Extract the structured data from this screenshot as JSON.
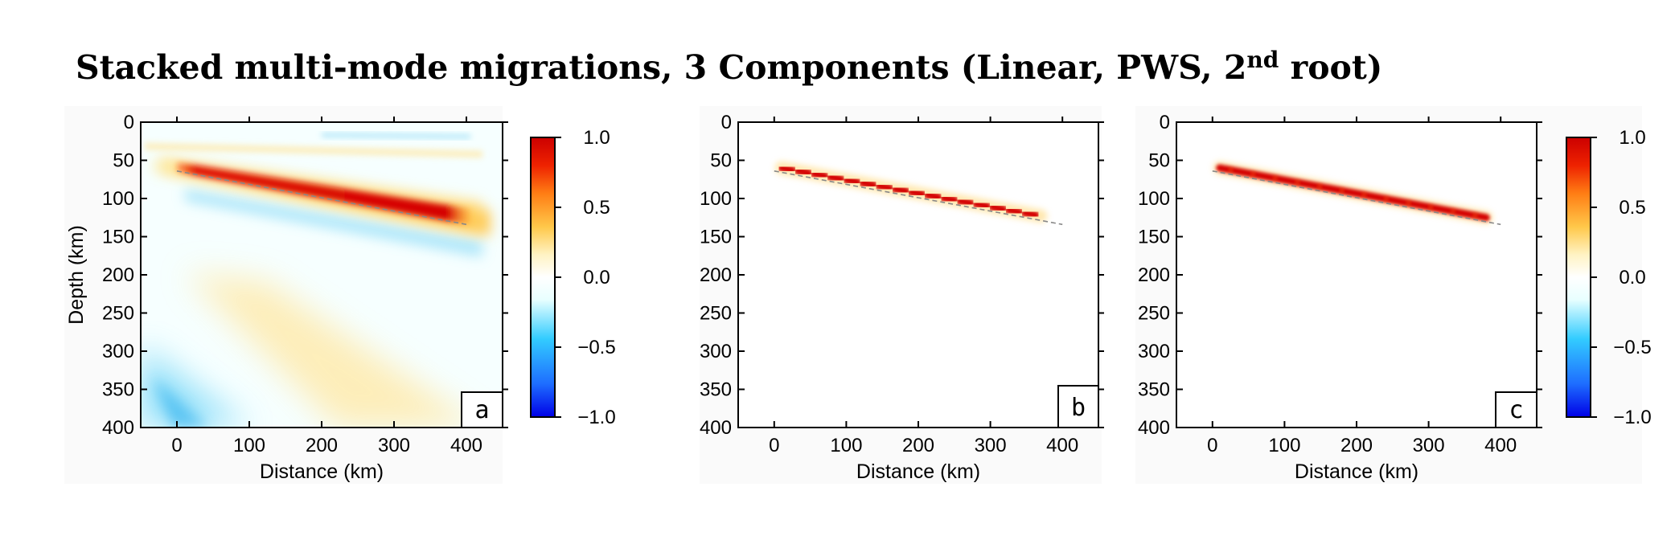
{
  "title": {
    "main": "Stacked multi-mode migrations, 3 Components (Linear, PWS, 2",
    "superscript": "nd",
    "suffix": " root)"
  },
  "chart_data": [
    {
      "type": "heatmap",
      "panel_label": "a",
      "xlabel": "Distance (km)",
      "ylabel": "Depth (km)",
      "xlim": [
        -50,
        450
      ],
      "ylim": [
        400,
        0
      ],
      "xticks": [
        0,
        100,
        200,
        300,
        400
      ],
      "yticks": [
        0,
        50,
        100,
        150,
        200,
        250,
        300,
        350,
        400
      ],
      "reference_line": {
        "x": [
          0,
          400
        ],
        "y": [
          64,
          134
        ]
      },
      "features": [
        {
          "kind": "positive-band",
          "x": [
            10,
            390
          ],
          "y": [
            60,
            125
          ],
          "amplitude": 1.0
        },
        {
          "kind": "positive-band",
          "x": [
            -50,
            440
          ],
          "y": [
            28,
            35
          ],
          "amplitude": 0.3
        },
        {
          "kind": "negative-band",
          "x": [
            150,
            410
          ],
          "y": [
            18,
            22
          ],
          "amplitude": -0.35
        },
        {
          "kind": "negative-band",
          "x": [
            20,
            450
          ],
          "y": [
            80,
            150
          ],
          "amplitude": -0.35
        },
        {
          "kind": "positive-band",
          "x": [
            -50,
            380
          ],
          "y": [
            250,
            400
          ],
          "amplitude": 0.25
        },
        {
          "kind": "negative-band",
          "x": [
            -50,
            150
          ],
          "y": [
            300,
            400
          ],
          "amplitude": -0.45
        }
      ]
    },
    {
      "type": "heatmap",
      "panel_label": "b",
      "xlabel": "Distance (km)",
      "ylabel": "",
      "xlim": [
        -50,
        450
      ],
      "ylim": [
        400,
        0
      ],
      "xticks": [
        0,
        100,
        200,
        300,
        400
      ],
      "yticks": [
        0,
        50,
        100,
        150,
        200,
        250,
        300,
        350,
        400
      ],
      "reference_line": {
        "x": [
          0,
          400
        ],
        "y": [
          64,
          134
        ]
      },
      "features": [
        {
          "kind": "beaded-band",
          "x": [
            10,
            370
          ],
          "y": [
            60,
            123
          ],
          "amplitude": 1.0
        }
      ]
    },
    {
      "type": "heatmap",
      "panel_label": "c",
      "xlabel": "Distance (km)",
      "ylabel": "",
      "xlim": [
        -50,
        450
      ],
      "ylim": [
        400,
        0
      ],
      "xticks": [
        0,
        100,
        200,
        300,
        400
      ],
      "yticks": [
        0,
        50,
        100,
        150,
        200,
        250,
        300,
        350,
        400
      ],
      "reference_line": {
        "x": [
          0,
          400
        ],
        "y": [
          64,
          134
        ]
      },
      "features": [
        {
          "kind": "smooth-band",
          "x": [
            10,
            380
          ],
          "y": [
            60,
            125
          ],
          "amplitude": 1.0
        }
      ]
    }
  ],
  "colorbar": {
    "range": [
      -1.0,
      1.0
    ],
    "tick_labels": [
      "1.0",
      "0.5",
      "0.0",
      "−0.5",
      "−1.0"
    ],
    "tick_values": [
      1.0,
      0.5,
      0.0,
      -0.5,
      -1.0
    ],
    "colors": [
      "#0000e6",
      "#1e6eff",
      "#33ccff",
      "#e8ffff",
      "#ffffff",
      "#fff3c4",
      "#ffc84a",
      "#ff7d14",
      "#ee2200",
      "#cc0000"
    ]
  }
}
